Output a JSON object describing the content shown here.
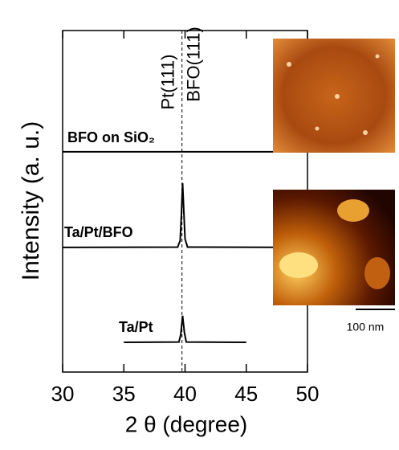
{
  "chart_data": {
    "type": "line",
    "x_label": "2 θ  (degree)",
    "y_label": "Intensity (a. u.)",
    "xlim": [
      30,
      50
    ],
    "xticks": [
      30,
      35,
      40,
      45,
      50
    ],
    "ylim": [
      0,
      10
    ],
    "series": [
      {
        "name": "BFO on SiO₂",
        "color": "#000000",
        "x": [
          30,
          50
        ],
        "values": [
          6.45,
          6.45
        ]
      },
      {
        "name": "Ta/Pt/BFO",
        "color": "#000000",
        "x": [
          30,
          39.4,
          39.6,
          39.7,
          39.8,
          39.9,
          40.0,
          40.2,
          50
        ],
        "values": [
          3.65,
          3.66,
          3.85,
          4.6,
          5.53,
          4.7,
          3.9,
          3.66,
          3.65
        ]
      },
      {
        "name": "Ta/Pt",
        "color": "#000000",
        "x": [
          35,
          39.5,
          39.65,
          39.8,
          39.95,
          40.1,
          45
        ],
        "values": [
          0.87,
          0.88,
          1.1,
          1.65,
          1.15,
          0.88,
          0.87
        ]
      }
    ],
    "marker_x": 39.75,
    "annotations": [
      "Pt(111)",
      "BFO(111)"
    ],
    "scale_bar": "100 nm"
  }
}
